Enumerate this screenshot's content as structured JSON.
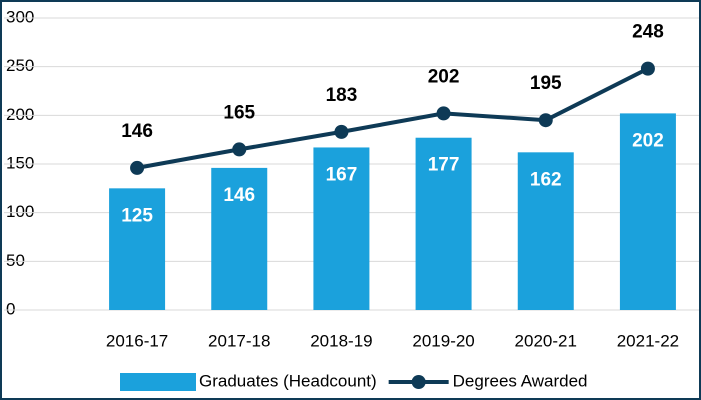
{
  "chart_data": {
    "type": "bar_line",
    "categories": [
      "2016-17",
      "2017-18",
      "2018-19",
      "2019-20",
      "2020-21",
      "2021-22"
    ],
    "series": [
      {
        "name": "Graduates (Headcount)",
        "type": "bar",
        "color": "#1ba1dc",
        "values": [
          125,
          146,
          167,
          177,
          162,
          202
        ]
      },
      {
        "name": "Degrees Awarded",
        "type": "line",
        "color": "#0e3a56",
        "values": [
          146,
          165,
          183,
          202,
          195,
          248
        ]
      }
    ],
    "ylim": [
      0,
      300
    ],
    "yticks": [
      0,
      50,
      100,
      150,
      200,
      250,
      300
    ],
    "grid": true,
    "legend": "bottom"
  }
}
